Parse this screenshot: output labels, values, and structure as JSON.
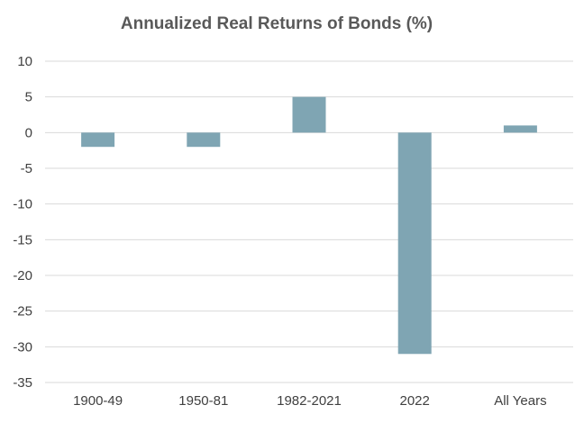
{
  "chart_data": {
    "type": "bar",
    "title": "Annualized Real Returns of Bonds (%)",
    "categories": [
      "1900-49",
      "1950-81",
      "1982-2021",
      "2022",
      "All Years"
    ],
    "values": [
      -2,
      -2,
      5,
      -31,
      1
    ],
    "xlabel": "",
    "ylabel": "",
    "ylim": [
      -35,
      10
    ],
    "yticks": [
      10,
      5,
      0,
      -5,
      -10,
      -15,
      -20,
      -25,
      -30,
      -35
    ],
    "grid": true,
    "legend": "none",
    "bar_color": "#7fa5b3",
    "grid_color": "#d9d9d9"
  }
}
